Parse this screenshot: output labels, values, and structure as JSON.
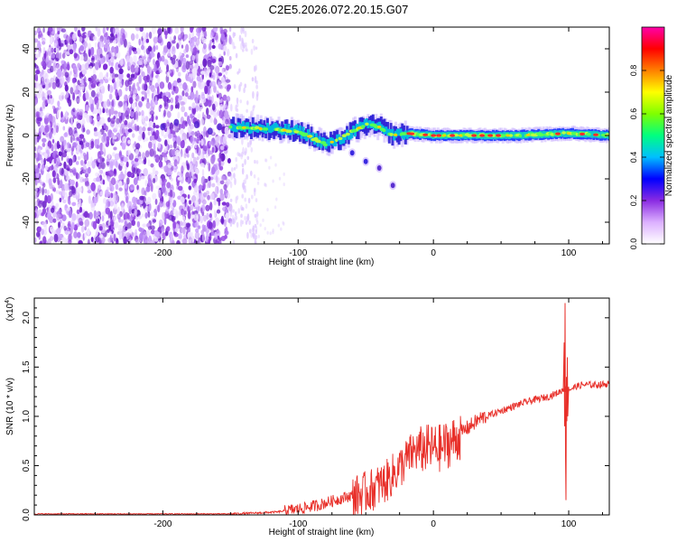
{
  "title": "C2E5.2026.072.20.15.G07",
  "chart_data": [
    {
      "type": "heatmap",
      "title": "C2E5.2026.072.20.15.G07",
      "xlabel": "Height of straight line (km)",
      "ylabel": "Frequency (Hz)",
      "xlim": [
        -295,
        130
      ],
      "ylim": [
        -50,
        50
      ],
      "x_ticks": [
        -200,
        -100,
        0,
        100
      ],
      "y_ticks": [
        -40,
        -20,
        0,
        20,
        40
      ],
      "colorbar": {
        "label": "Normalized spectral amplitude",
        "range": [
          0,
          1
        ],
        "ticks": [
          0.0,
          0.2,
          0.4,
          0.6,
          0.8
        ],
        "colors": [
          "#ffffff",
          "#dcb0ff",
          "#8a2be2",
          "#0000ff",
          "#00bfff",
          "#00ff80",
          "#7fff00",
          "#ffff00",
          "#ff8000",
          "#ff0000",
          "#ff00aa"
        ]
      },
      "features": {
        "noise_region_x": [
          -295,
          -150
        ],
        "sparse_noise_x": [
          -150,
          -130
        ],
        "tone_ridge": [
          {
            "x": -150,
            "y": 4
          },
          {
            "x": -120,
            "y": 3
          },
          {
            "x": -100,
            "y": 2
          },
          {
            "x": -90,
            "y": -1
          },
          {
            "x": -80,
            "y": -4
          },
          {
            "x": -70,
            "y": -2
          },
          {
            "x": -60,
            "y": 2
          },
          {
            "x": -50,
            "y": 5
          },
          {
            "x": -40,
            "y": 4
          },
          {
            "x": -30,
            "y": 0
          },
          {
            "x": -20,
            "y": 1
          },
          {
            "x": 0,
            "y": 0
          },
          {
            "x": 20,
            "y": 0
          },
          {
            "x": 60,
            "y": 0
          },
          {
            "x": 100,
            "y": 1
          },
          {
            "x": 130,
            "y": 0
          }
        ],
        "descending_branch": [
          {
            "x": -60,
            "y": -8
          },
          {
            "x": -50,
            "y": -12
          },
          {
            "x": -40,
            "y": -15
          },
          {
            "x": -30,
            "y": -23
          }
        ]
      }
    },
    {
      "type": "line",
      "xlabel": "Height of straight line (km)",
      "ylabel": "SNR (10 * v/v)",
      "y_multiplier": "(x10",
      "y_multiplier_exp": "4",
      "y_multiplier_close": ")",
      "xlim": [
        -295,
        130
      ],
      "ylim": [
        0,
        2.2
      ],
      "x_ticks": [
        -200,
        -100,
        0,
        100
      ],
      "y_ticks": [
        0.0,
        0.5,
        1.0,
        1.5,
        2.0
      ],
      "y_tick_labels": [
        "0.0",
        "0.5",
        "1.0",
        "1.5",
        "2.0"
      ],
      "color": "#e8302a",
      "series": [
        {
          "x": [
            -295,
            -260,
            -220,
            -180,
            -150,
            -130,
            -115,
            -100,
            -85,
            -70,
            -55,
            -45,
            -35,
            -25,
            -15,
            -5,
            5,
            15,
            25,
            35,
            45,
            55,
            65,
            75,
            85,
            92,
            97,
            100,
            105,
            110,
            120,
            130
          ],
          "values": [
            0.01,
            0.01,
            0.01,
            0.01,
            0.01,
            0.02,
            0.03,
            0.06,
            0.1,
            0.16,
            0.22,
            0.28,
            0.36,
            0.5,
            0.66,
            0.7,
            0.7,
            0.78,
            0.88,
            0.98,
            1.03,
            1.08,
            1.13,
            1.17,
            1.2,
            1.24,
            1.28,
            1.27,
            1.3,
            1.32,
            1.32,
            1.33
          ]
        }
      ],
      "spike": {
        "x": 98,
        "max": 2.15,
        "min": 0.15
      }
    }
  ]
}
